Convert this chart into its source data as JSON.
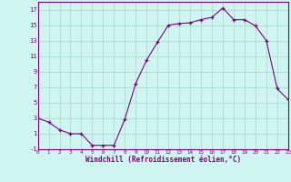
{
  "x": [
    0,
    1,
    2,
    3,
    4,
    5,
    6,
    7,
    8,
    9,
    10,
    11,
    12,
    13,
    14,
    15,
    16,
    17,
    18,
    19,
    20,
    21,
    22,
    23
  ],
  "y": [
    3,
    2.5,
    1.5,
    1,
    1,
    -0.5,
    -0.5,
    -0.5,
    2.9,
    7.5,
    10.5,
    12.8,
    15.0,
    15.2,
    15.3,
    15.7,
    16.0,
    17.2,
    15.7,
    15.7,
    14.9,
    13.0,
    6.8,
    5.4
  ],
  "xlim": [
    0,
    23
  ],
  "ylim": [
    -1,
    18
  ],
  "yticks": [
    -1,
    1,
    3,
    5,
    7,
    9,
    11,
    13,
    15,
    17
  ],
  "xticks": [
    0,
    1,
    2,
    3,
    4,
    5,
    6,
    7,
    8,
    9,
    10,
    11,
    12,
    13,
    14,
    15,
    16,
    17,
    18,
    19,
    20,
    21,
    22,
    23
  ],
  "xlabel": "Windchill (Refroidissement éolien,°C)",
  "line_color": "#800080",
  "marker": "+",
  "bg_color": "#cef5ef",
  "grid_color": "#aaddcc",
  "tick_label_color": "#800080",
  "xlabel_color": "#800080"
}
